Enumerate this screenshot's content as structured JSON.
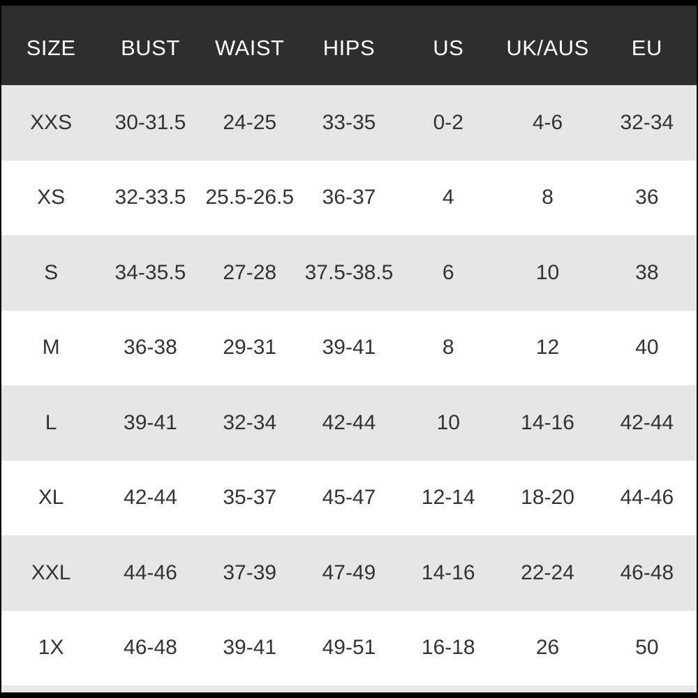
{
  "table": {
    "header": [
      "SIZE",
      "BUST",
      "WAIST",
      "HIPS",
      "US",
      "UK/AUS",
      "EU"
    ],
    "rows": [
      [
        "XXS",
        "30-31.5",
        "24-25",
        "33-35",
        "0-2",
        "4-6",
        "32-34"
      ],
      [
        "XS",
        "32-33.5",
        "25.5-26.5",
        "36-37",
        "4",
        "8",
        "36"
      ],
      [
        "S",
        "34-35.5",
        "27-28",
        "37.5-38.5",
        "6",
        "10",
        "38"
      ],
      [
        "M",
        "36-38",
        "29-31",
        "39-41",
        "8",
        "12",
        "40"
      ],
      [
        "L",
        "39-41",
        "32-34",
        "42-44",
        "10",
        "14-16",
        "42-44"
      ],
      [
        "XL",
        "42-44",
        "35-37",
        "45-47",
        "12-14",
        "18-20",
        "44-46"
      ],
      [
        "XXL",
        "44-46",
        "37-39",
        "47-49",
        "14-16",
        "22-24",
        "46-48"
      ],
      [
        "1X",
        "46-48",
        "39-41",
        "49-51",
        "16-18",
        "26",
        "50"
      ]
    ]
  }
}
